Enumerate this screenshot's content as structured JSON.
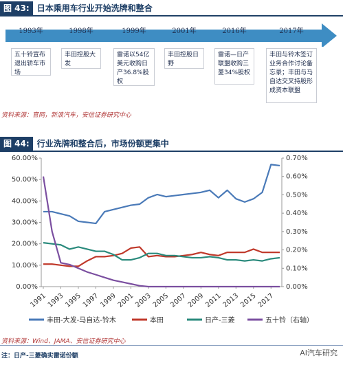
{
  "fig43": {
    "num": "图 43:",
    "title": "日本乘用车行业开始洗牌和整合",
    "events": [
      {
        "year": "1993年",
        "text": "五十铃宣布退出轿车市场"
      },
      {
        "year": "1998年",
        "text": "丰田控股大发"
      },
      {
        "year": "1999年",
        "text": "雷诺以54亿美元收购日产36.8%股权"
      },
      {
        "year": "2001年",
        "text": "丰田控股日野"
      },
      {
        "year": "2016年",
        "text": "雷诺—日产联盟收购三菱34%股权"
      },
      {
        "year": "2017年",
        "text": "丰田与铃木签订业务合作讨论备忘录；丰田与马自达交叉持股形成资本联盟"
      }
    ],
    "source": "资料来源：官网，新浪汽车，安信证券研究中心"
  },
  "fig44": {
    "num": "图 44:",
    "title": "行业洗牌和整合后，市场份额更集中",
    "source": "资料来源：Wind、JAMA、安信证券研究中心"
  },
  "note": "注：日产-三菱确实雷诺份额",
  "watermark": "AI汽车研究",
  "chart_data": {
    "type": "line",
    "x": [
      1991,
      1992,
      1993,
      1994,
      1995,
      1996,
      1997,
      1998,
      1999,
      2000,
      2001,
      2002,
      2003,
      2004,
      2005,
      2006,
      2007,
      2008,
      2009,
      2010,
      2011,
      2012,
      2013,
      2014,
      2015,
      2016,
      2017,
      2018
    ],
    "xticks": [
      "1991",
      "1993",
      "1995",
      "1997",
      "1999",
      "2001",
      "2003",
      "2005",
      "2007",
      "2009",
      "2011",
      "2013",
      "2015",
      "2017"
    ],
    "left_axis": {
      "min": 0,
      "max": 60,
      "ticks": [
        "0.00%",
        "10.00%",
        "20.00%",
        "30.00%",
        "40.00%",
        "50.00%",
        "60.00%"
      ]
    },
    "right_axis": {
      "min": 0,
      "max": 0.7,
      "ticks": [
        "0.00%",
        "0.10%",
        "0.20%",
        "0.30%",
        "0.40%",
        "0.50%",
        "0.60%",
        "0.70%"
      ]
    },
    "series": [
      {
        "name": "丰田-大发-马自达-铃木",
        "axis": "left",
        "color": "#4a7ab8",
        "values": [
          35,
          35,
          34,
          33,
          30.5,
          30,
          29.5,
          35,
          36,
          37,
          38,
          38.5,
          41.5,
          43,
          42,
          42.5,
          43,
          43.5,
          44,
          45,
          41.5,
          45,
          41,
          39.5,
          41,
          44,
          57,
          56.5
        ]
      },
      {
        "name": "本田",
        "axis": "left",
        "color": "#c0392b",
        "values": [
          10.5,
          10.5,
          10,
          9.5,
          9.5,
          12,
          14,
          14,
          14.5,
          15.5,
          18,
          18.5,
          14,
          14.5,
          14,
          14,
          14.5,
          15,
          16,
          15,
          14.5,
          16,
          16,
          16,
          17.5,
          16,
          16,
          16
        ]
      },
      {
        "name": "日产-三菱",
        "axis": "left",
        "color": "#2a8a7c",
        "values": [
          20.5,
          20,
          19.5,
          17.5,
          18.5,
          17.5,
          16.5,
          16.5,
          15,
          12.5,
          12.5,
          13.5,
          15.5,
          15.5,
          14.5,
          14.5,
          14,
          13.5,
          13.5,
          14,
          13.5,
          12.5,
          12.5,
          12,
          12.5,
          12,
          13,
          13.5
        ]
      },
      {
        "name": "五十铃（右轴）",
        "axis": "right",
        "color": "#7b4fa0",
        "values": [
          0.6,
          0.3,
          0.13,
          0.12,
          0.1,
          0.08,
          0.065,
          0.05,
          0.035,
          0.025,
          0.015,
          0.005,
          0,
          0,
          0,
          0,
          0,
          0,
          0,
          0,
          0,
          0,
          0,
          0,
          0,
          0,
          0,
          0
        ]
      }
    ]
  }
}
